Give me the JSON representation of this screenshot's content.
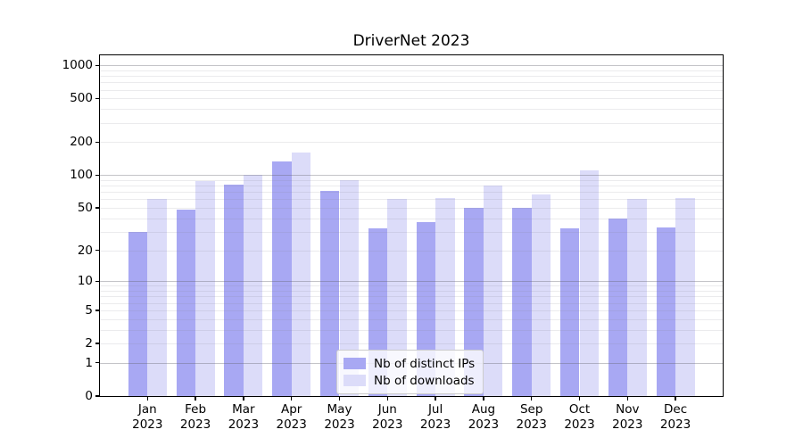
{
  "title": "DriverNet 2023",
  "legend": {
    "entries": [
      "Nb of distinct IPs",
      "Nb of downloads"
    ]
  },
  "chart_data": {
    "type": "bar",
    "title": "DriverNet 2023",
    "categories": [
      "Jan 2023",
      "Feb 2023",
      "Mar 2023",
      "Apr 2023",
      "May 2023",
      "Jun 2023",
      "Jul 2023",
      "Aug 2023",
      "Sep 2023",
      "Oct 2023",
      "Nov 2023",
      "Dec 2023"
    ],
    "month_labels": [
      {
        "month": "Jan",
        "year": "2023"
      },
      {
        "month": "Feb",
        "year": "2023"
      },
      {
        "month": "Mar",
        "year": "2023"
      },
      {
        "month": "Apr",
        "year": "2023"
      },
      {
        "month": "May",
        "year": "2023"
      },
      {
        "month": "Jun",
        "year": "2023"
      },
      {
        "month": "Jul",
        "year": "2023"
      },
      {
        "month": "Aug",
        "year": "2023"
      },
      {
        "month": "Sep",
        "year": "2023"
      },
      {
        "month": "Oct",
        "year": "2023"
      },
      {
        "month": "Nov",
        "year": "2023"
      },
      {
        "month": "Dec",
        "year": "2023"
      }
    ],
    "series": [
      {
        "name": "Nb of distinct IPs",
        "color": "#a8a8f3",
        "values": [
          30,
          48,
          82,
          133,
          72,
          32,
          37,
          50,
          50,
          32,
          40,
          33
        ]
      },
      {
        "name": "Nb of downloads",
        "color": "#dcdcf9",
        "values": [
          60,
          88,
          100,
          160,
          90,
          60,
          62,
          80,
          66,
          110,
          60,
          62
        ]
      }
    ],
    "yscale": "log1p",
    "ylim": [
      0,
      1236
    ],
    "yticks": [
      {
        "value": 1000,
        "label": "1000"
      },
      {
        "value": 500,
        "label": "500"
      },
      {
        "value": 200,
        "label": "200"
      },
      {
        "value": 100,
        "label": "100"
      },
      {
        "value": 50,
        "label": "50"
      },
      {
        "value": 20,
        "label": "20"
      },
      {
        "value": 10,
        "label": "10"
      },
      {
        "value": 5,
        "label": "5"
      },
      {
        "value": 2,
        "label": "2"
      },
      {
        "value": 1,
        "label": "1"
      },
      {
        "value": 0,
        "label": "0"
      }
    ],
    "major_grid_values": [
      1,
      10,
      100,
      1000
    ],
    "minor_grid_values": [
      2,
      3,
      4,
      5,
      6,
      7,
      8,
      9,
      20,
      30,
      40,
      50,
      60,
      70,
      80,
      90,
      200,
      300,
      400,
      500,
      600,
      700,
      800,
      900
    ],
    "grid": true,
    "legend_position": "lower-center"
  }
}
